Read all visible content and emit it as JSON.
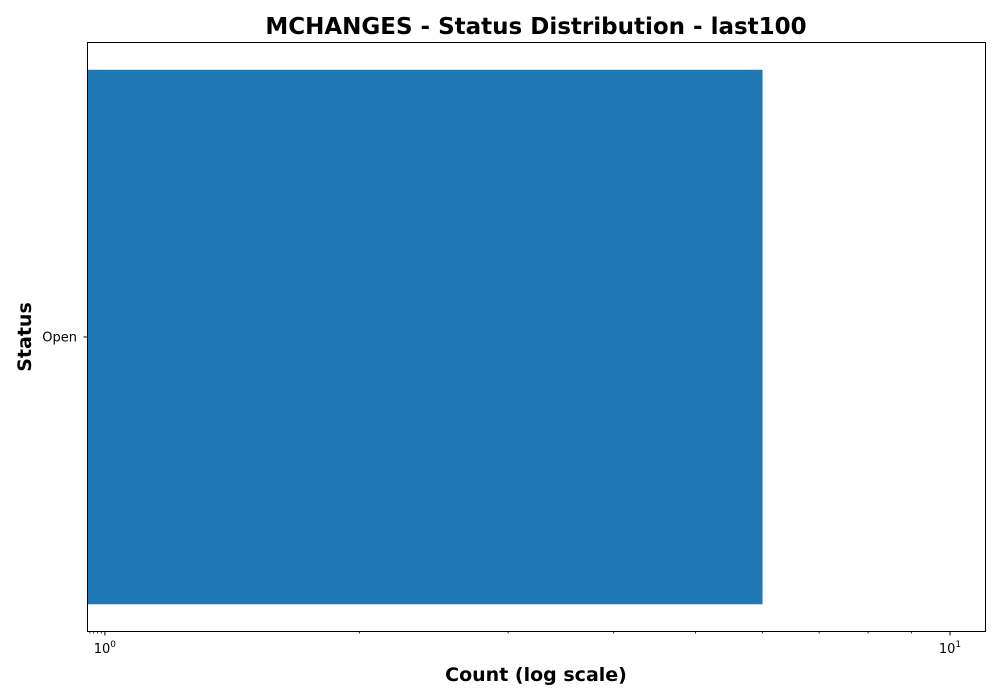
{
  "chart_data": {
    "type": "bar",
    "orientation": "horizontal",
    "title": "MCHANGES - Status Distribution - last100",
    "xlabel": "Count (log scale)",
    "ylabel": "Status",
    "x_scale": "log",
    "xlim": [
      0.955,
      11
    ],
    "categories": [
      "Open"
    ],
    "values": [
      6
    ],
    "bar_color": "#1f77b4",
    "x_major_ticks": [
      {
        "value": 1,
        "base": "10",
        "exp": "0"
      },
      {
        "value": 10,
        "base": "10",
        "exp": "1"
      }
    ],
    "x_minor_ticks": [
      2,
      3,
      4,
      5,
      6,
      7,
      8,
      9
    ],
    "grid": false,
    "legend": "none"
  }
}
